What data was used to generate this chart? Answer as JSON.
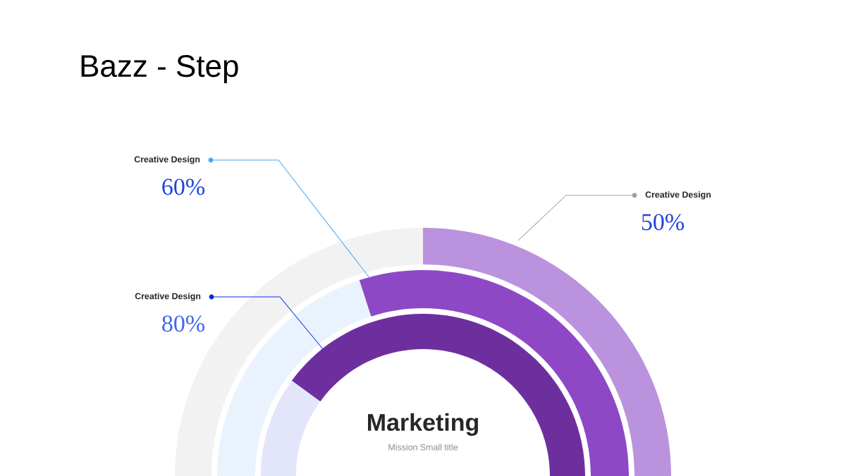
{
  "chart_data": {
    "type": "other",
    "title": "Bazz - Step",
    "categories": [
      "Creative Design",
      "Creative Design",
      "Creative Design"
    ],
    "values": [
      50,
      60,
      80
    ],
    "value_labels": [
      "50%",
      "60%",
      "80%"
    ],
    "colors": [
      "#bb92de",
      "#8e48c6",
      "#6e2f9e"
    ],
    "annotations": [
      "Marketing",
      "Mission Small title"
    ]
  }
}
